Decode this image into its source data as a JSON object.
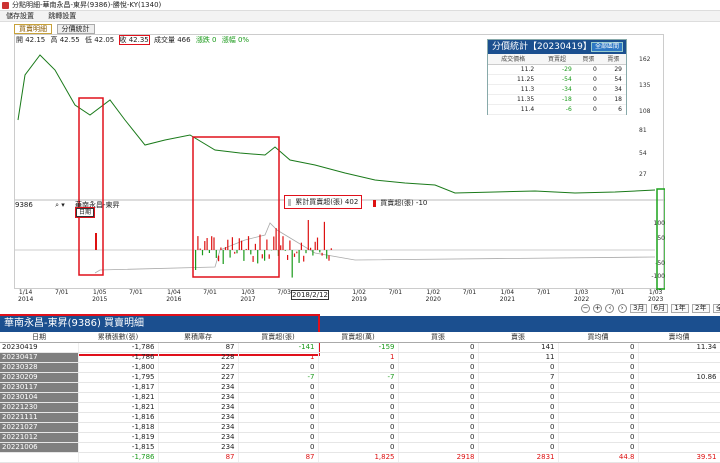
{
  "window": {
    "title": "分點明細-華南永昌-東昇(9386)-勝悅-KY(1340)"
  },
  "menu": [
    "儲存設置",
    "跳轉設置"
  ],
  "tabs": [
    "買賣明細",
    "分價統計"
  ],
  "quote": {
    "open": "開 42.15",
    "high": "高 42.55",
    "low": "低 42.05",
    "close": "收 42.35",
    "volume": "成交量 466",
    "change": "漲跌 0",
    "pct": "漲幅 0%"
  },
  "price_axis": [
    "162",
    "135",
    "108",
    "81",
    "54",
    "27"
  ],
  "lower_axis": [
    "100",
    "50",
    "-50",
    "-100"
  ],
  "stats": {
    "title": "分價統計【20230419】",
    "button": "全部區間",
    "headers": [
      "成交價格",
      "買賣超",
      "買張",
      "賣張"
    ],
    "rows": [
      [
        "11.2",
        "-29",
        "0",
        "29"
      ],
      [
        "11.25",
        "-54",
        "0",
        "54"
      ],
      [
        "11.3",
        "-34",
        "0",
        "34"
      ],
      [
        "11.35",
        "-18",
        "0",
        "18"
      ],
      [
        "11.4",
        "-6",
        "0",
        "6"
      ]
    ]
  },
  "lower_panel": {
    "code": "9386",
    "name": "華南永昌-東昇",
    "tool": "日期"
  },
  "legend": {
    "cumulative": "累計買賣超(張) 402",
    "daily": "買賣超(張) -10"
  },
  "x_axis": [
    [
      "1/14",
      "2014"
    ],
    [
      "7/01",
      ""
    ],
    [
      "1/05",
      "2015"
    ],
    [
      "7/01",
      ""
    ],
    [
      "1/04",
      "2016"
    ],
    [
      "7/01",
      ""
    ],
    [
      "1/03",
      "2017"
    ],
    [
      "7/03",
      ""
    ],
    [
      "",
      ""
    ],
    [
      "1/02",
      "2019"
    ],
    [
      "7/01",
      ""
    ],
    [
      "1/02",
      "2020"
    ],
    [
      "7/01",
      ""
    ],
    [
      "1/04",
      "2021"
    ],
    [
      "7/01",
      ""
    ],
    [
      "1/03",
      "2022"
    ],
    [
      "7/01",
      ""
    ],
    [
      "1/03",
      "2023"
    ]
  ],
  "date_tip": "2018/2/12",
  "nav": [
    "3月",
    "6月",
    "1年",
    "2年",
    "全"
  ],
  "detail": {
    "title": "華南永昌-東昇(9386) 買賣明細",
    "headers": [
      "日期",
      "累積張數(張)",
      "累積庫存",
      "買賣超(張)",
      "買賣超(萬)",
      "買張",
      "賣張",
      "買均價",
      "賣均價"
    ],
    "rows": [
      [
        "20230419",
        "-1,786",
        "87",
        "-141",
        "-159",
        "0",
        "141",
        "0",
        "11.34"
      ],
      [
        "20230417",
        "-1,786",
        "228",
        "1",
        "1",
        "0",
        "11",
        "0",
        ""
      ],
      [
        "20230328",
        "-1,800",
        "227",
        "0",
        "0",
        "0",
        "0",
        "0",
        ""
      ],
      [
        "20230209",
        "-1,795",
        "227",
        "-7",
        "-7",
        "0",
        "7",
        "0",
        "10.86"
      ],
      [
        "20230117",
        "-1,817",
        "234",
        "0",
        "0",
        "0",
        "0",
        "0",
        ""
      ],
      [
        "20230104",
        "-1,821",
        "234",
        "0",
        "0",
        "0",
        "0",
        "0",
        ""
      ],
      [
        "20221230",
        "-1,821",
        "234",
        "0",
        "0",
        "0",
        "0",
        "0",
        ""
      ],
      [
        "20221111",
        "-1,816",
        "234",
        "0",
        "0",
        "0",
        "0",
        "0",
        ""
      ],
      [
        "20221027",
        "-1,818",
        "234",
        "0",
        "0",
        "0",
        "0",
        "0",
        ""
      ],
      [
        "20221012",
        "-1,819",
        "234",
        "0",
        "0",
        "0",
        "0",
        "0",
        ""
      ],
      [
        "20221006",
        "-1,815",
        "234",
        "0",
        "0",
        "0",
        "0",
        "0",
        ""
      ]
    ],
    "total": [
      "",
      "-1,786",
      "87",
      "87",
      "1,825",
      "2918",
      "2831",
      "44.8",
      "39.51"
    ]
  },
  "colors": {
    "header_blue": "#1b4f8f",
    "highlight_red": "#e0101b",
    "up": "#d11",
    "down": "#1a9a1a"
  }
}
